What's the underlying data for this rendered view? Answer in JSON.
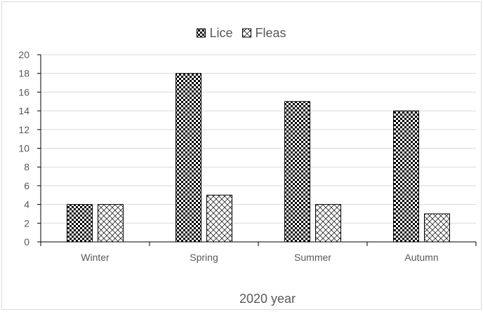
{
  "chart_data": {
    "type": "bar",
    "categories": [
      "Winter",
      "Spring",
      "Summer",
      "Autumn"
    ],
    "series": [
      {
        "name": "Lice",
        "values": [
          4,
          18,
          15,
          14
        ],
        "pattern": "checker"
      },
      {
        "name": "Fleas",
        "values": [
          4,
          5,
          4,
          3
        ],
        "pattern": "crosshatch"
      }
    ],
    "title": "",
    "xlabel": "2020 year",
    "ylabel": "",
    "ylim": [
      0,
      20
    ],
    "yticks": [
      0,
      2,
      4,
      6,
      8,
      10,
      12,
      14,
      16,
      18,
      20
    ],
    "grid": true,
    "legend_position": "top-center",
    "colors": {
      "bar_fill": "#000000",
      "bar_background": "#ffffff",
      "grid": "#d9d9d9",
      "axis": "#000000",
      "text": "#595959"
    }
  }
}
